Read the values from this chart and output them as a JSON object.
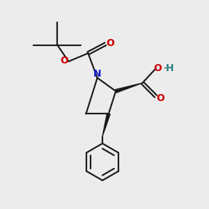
{
  "bg_color": "#ececec",
  "bond_color": "#1a1a1a",
  "nitrogen_color": "#1a1acc",
  "oxygen_color": "#cc0000",
  "oh_h_color": "#2a8080",
  "line_width": 1.6,
  "figsize": [
    3.0,
    3.0
  ],
  "dpi": 100,
  "xlim": [
    0,
    10
  ],
  "ylim": [
    0,
    10
  ]
}
